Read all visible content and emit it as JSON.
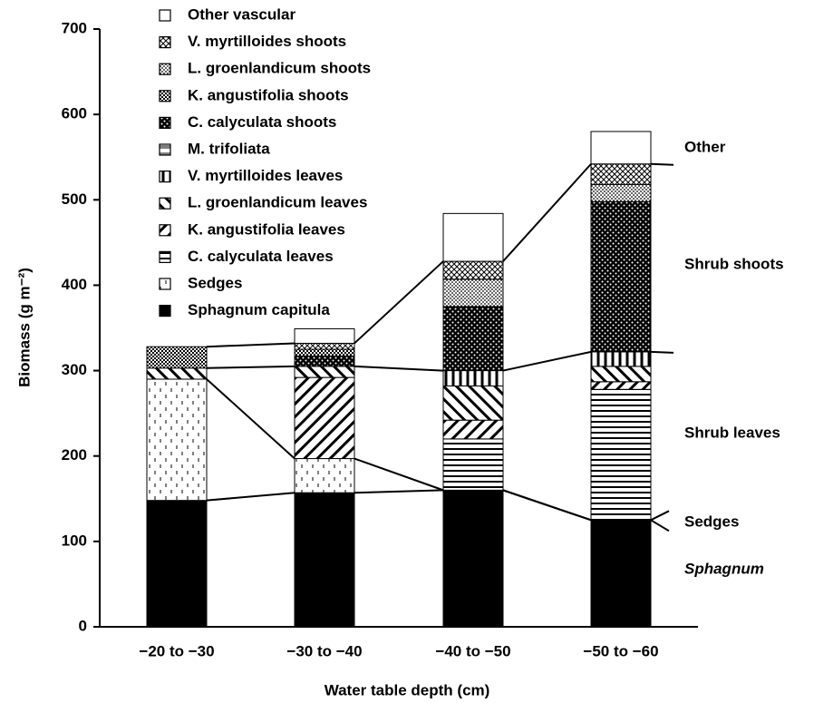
{
  "chart_data": {
    "type": "stacked_bar",
    "x_label": "Water table depth (cm)",
    "y_label": "Biomass (g m⁻²)",
    "categories": [
      "−20 to −30",
      "−30 to −40",
      "−40 to −50",
      "−50 to −60"
    ],
    "ylim": [
      0,
      700
    ],
    "yticks": [
      0,
      100,
      200,
      300,
      400,
      500,
      600,
      700
    ],
    "color": "#000000",
    "series": [
      {
        "name": "Sphagnum capitula",
        "values": [
          148,
          157,
          160,
          125
        ]
      },
      {
        "name": "Sedges",
        "values": [
          142,
          40,
          0,
          0
        ]
      },
      {
        "name": "C. calyculata leaves",
        "values": [
          0,
          0,
          60,
          153
        ]
      },
      {
        "name": "K. angustifolia leaves",
        "values": [
          0,
          95,
          22,
          9
        ]
      },
      {
        "name": "L. groenlandicum leaves",
        "values": [
          13,
          13,
          40,
          18
        ]
      },
      {
        "name": "V. myrtilloides leaves",
        "values": [
          0,
          0,
          18,
          17
        ]
      },
      {
        "name": "M. trifoliata",
        "values": [
          0,
          0,
          0,
          0
        ]
      },
      {
        "name": "C. calyculata shoots",
        "values": [
          0,
          12,
          75,
          176
        ]
      },
      {
        "name": "K. angustifolia shoots",
        "values": [
          25,
          8,
          0,
          0
        ]
      },
      {
        "name": "L. groenlandicum shoots",
        "values": [
          0,
          0,
          32,
          20
        ]
      },
      {
        "name": "V. myrtilloides shoots",
        "values": [
          0,
          7,
          21,
          24
        ]
      },
      {
        "name": "Other vascular",
        "values": [
          0,
          17,
          56,
          38
        ]
      }
    ],
    "annotations": [
      "Other",
      "Shrub shoots",
      "Shrub leaves",
      "Sedges",
      "Sphagnum"
    ]
  }
}
